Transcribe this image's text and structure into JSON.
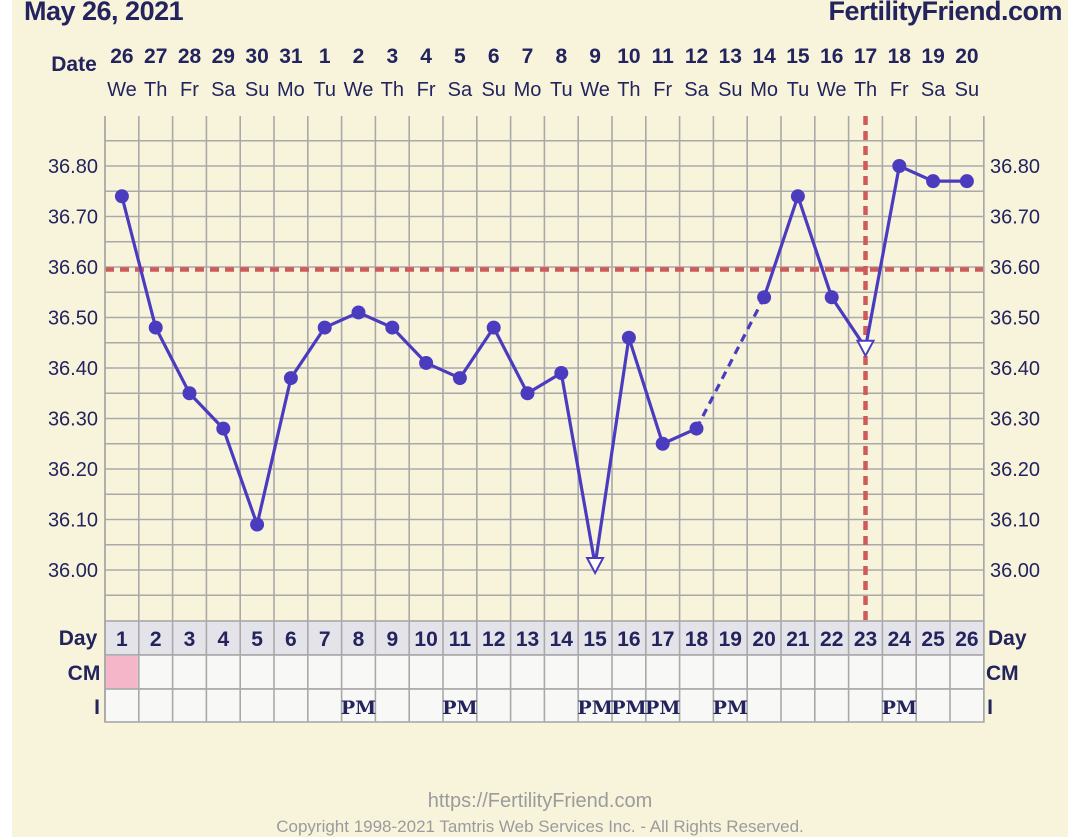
{
  "header": {
    "date": "May 26, 2021",
    "site": "FertilityFriend.com"
  },
  "footer": {
    "url": "https://FertilityFriend.com",
    "copyright": "Copyright 1998-2021 Tamtris Web Services Inc. - All Rights Reserved."
  },
  "colors": {
    "line": "#4b3cbf",
    "coverline": "#d05a5a",
    "grid": "#a9a9a9",
    "cm_highlight": "#f4b6c8",
    "text": "#23235e"
  },
  "chart_data": {
    "type": "line",
    "row_labels": {
      "date": "Date",
      "day": "Day",
      "cm": "CM",
      "intercourse": "I"
    },
    "dates": [
      "26",
      "27",
      "28",
      "29",
      "30",
      "31",
      "1",
      "2",
      "3",
      "4",
      "5",
      "6",
      "7",
      "8",
      "9",
      "10",
      "11",
      "12",
      "13",
      "14",
      "15",
      "16",
      "17",
      "18",
      "19",
      "20"
    ],
    "weekdays": [
      "We",
      "Th",
      "Fr",
      "Sa",
      "Su",
      "Mo",
      "Tu",
      "We",
      "Th",
      "Fr",
      "Sa",
      "Su",
      "Mo",
      "Tu",
      "We",
      "Th",
      "Fr",
      "Sa",
      "Su",
      "Mo",
      "Tu",
      "We",
      "Th",
      "Fr",
      "Sa",
      "Su"
    ],
    "days": [
      1,
      2,
      3,
      4,
      5,
      6,
      7,
      8,
      9,
      10,
      11,
      12,
      13,
      14,
      15,
      16,
      17,
      18,
      19,
      20,
      21,
      22,
      23,
      24,
      25,
      26
    ],
    "temperatures": [
      36.74,
      36.48,
      36.35,
      36.28,
      36.09,
      36.38,
      36.48,
      36.51,
      36.48,
      36.41,
      36.38,
      36.48,
      36.35,
      36.39,
      36.01,
      36.46,
      36.25,
      36.28,
      null,
      36.54,
      36.74,
      36.54,
      36.44,
      36.8,
      36.77,
      36.77
    ],
    "discarded_days": [
      15,
      23
    ],
    "dashed_gap": {
      "from_day": 18,
      "to_day": 20
    },
    "coverline": 36.595,
    "ovulation_day": 23,
    "y_ticks": [
      "36.00",
      "36.10",
      "36.20",
      "36.30",
      "36.40",
      "36.50",
      "36.60",
      "36.70",
      "36.80"
    ],
    "ylim": [
      35.95,
      36.9
    ],
    "cm_highlight_days": [
      1
    ],
    "intercourse": [
      {
        "day": 8,
        "label": "PM"
      },
      {
        "day": 11,
        "label": "PM"
      },
      {
        "day": 15,
        "label": "PM"
      },
      {
        "day": 16,
        "label": "PM"
      },
      {
        "day": 17,
        "label": "PM"
      },
      {
        "day": 19,
        "label": "PM"
      },
      {
        "day": 24,
        "label": "PM"
      }
    ]
  }
}
